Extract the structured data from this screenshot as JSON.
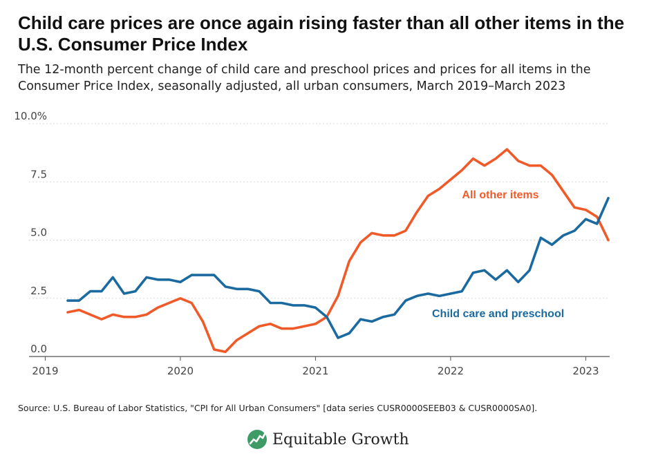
{
  "title": "Child care prices are once again rising faster than all other items in the U.S. Consumer Price Index",
  "subtitle": "The 12-month percent change of child care and preschool prices and prices for all items in the Consumer Price Index, seasonally adjusted, all urban consumers, March 2019–March 2023",
  "source": "Source: U.S. Bureau of Labor Statistics, \"CPI for All Urban Consumers\" [data series CUSR0000SEEB03 & CUSR0000SA0].",
  "brand": {
    "name": "Equitable Growth",
    "icon": "equitable-growth-logo"
  },
  "colors": {
    "child_care": "#1a6aa0",
    "all_other": "#f05a28",
    "grid": "#d9d9d9",
    "axis": "#555555",
    "logo_green": "#3f9b66"
  },
  "chart_data": {
    "type": "line",
    "x": [
      "2019-03",
      "2019-04",
      "2019-05",
      "2019-06",
      "2019-07",
      "2019-08",
      "2019-09",
      "2019-10",
      "2019-11",
      "2019-12",
      "2020-01",
      "2020-02",
      "2020-03",
      "2020-04",
      "2020-05",
      "2020-06",
      "2020-07",
      "2020-08",
      "2020-09",
      "2020-10",
      "2020-11",
      "2020-12",
      "2021-01",
      "2021-02",
      "2021-03",
      "2021-04",
      "2021-05",
      "2021-06",
      "2021-07",
      "2021-08",
      "2021-09",
      "2021-10",
      "2021-11",
      "2021-12",
      "2022-01",
      "2022-02",
      "2022-03",
      "2022-04",
      "2022-05",
      "2022-06",
      "2022-07",
      "2022-08",
      "2022-09",
      "2022-10",
      "2022-11",
      "2022-12",
      "2023-01",
      "2023-02",
      "2023-03"
    ],
    "series": [
      {
        "name": "All other items",
        "color": "#f05a28",
        "label_anchor": "2022-10",
        "values": [
          1.9,
          2.0,
          1.8,
          1.6,
          1.8,
          1.7,
          1.7,
          1.8,
          2.1,
          2.3,
          2.5,
          2.3,
          1.5,
          0.3,
          0.2,
          0.7,
          1.0,
          1.3,
          1.4,
          1.2,
          1.2,
          1.3,
          1.4,
          1.7,
          2.6,
          4.1,
          4.9,
          5.3,
          5.2,
          5.2,
          5.4,
          6.2,
          6.9,
          7.2,
          7.6,
          8.0,
          8.5,
          8.2,
          8.5,
          8.9,
          8.4,
          8.2,
          8.2,
          7.8,
          7.1,
          6.4,
          6.3,
          6.0,
          5.0
        ]
      },
      {
        "name": "Child care and preschool",
        "color": "#1a6aa0",
        "label_anchor": "2022-04",
        "values": [
          2.4,
          2.4,
          2.8,
          2.8,
          3.4,
          2.7,
          2.8,
          3.4,
          3.3,
          3.3,
          3.2,
          3.5,
          3.5,
          3.5,
          3.0,
          2.9,
          2.9,
          2.8,
          2.3,
          2.3,
          2.2,
          2.2,
          2.1,
          1.7,
          0.8,
          1.0,
          1.6,
          1.5,
          1.7,
          1.8,
          2.4,
          2.6,
          2.7,
          2.6,
          2.7,
          2.8,
          3.6,
          3.7,
          3.3,
          3.7,
          3.2,
          3.7,
          5.1,
          4.8,
          5.2,
          5.4,
          5.9,
          5.7,
          6.8
        ]
      }
    ],
    "xlabel": "",
    "ylabel": "",
    "ylim": [
      0,
      10
    ],
    "yticks": [
      {
        "value": 0,
        "label": "0.0"
      },
      {
        "value": 2.5,
        "label": "2.5"
      },
      {
        "value": 5,
        "label": "5.0"
      },
      {
        "value": 7.5,
        "label": "7.5"
      },
      {
        "value": 10,
        "label": "10.0%"
      }
    ],
    "xticks": [
      {
        "date": "2019-01",
        "label": "2019"
      },
      {
        "date": "2020-01",
        "label": "2020"
      },
      {
        "date": "2021-01",
        "label": "2021"
      },
      {
        "date": "2022-01",
        "label": "2022"
      },
      {
        "date": "2023-01",
        "label": "2023"
      }
    ],
    "grid": true,
    "legend": "inline labels"
  }
}
